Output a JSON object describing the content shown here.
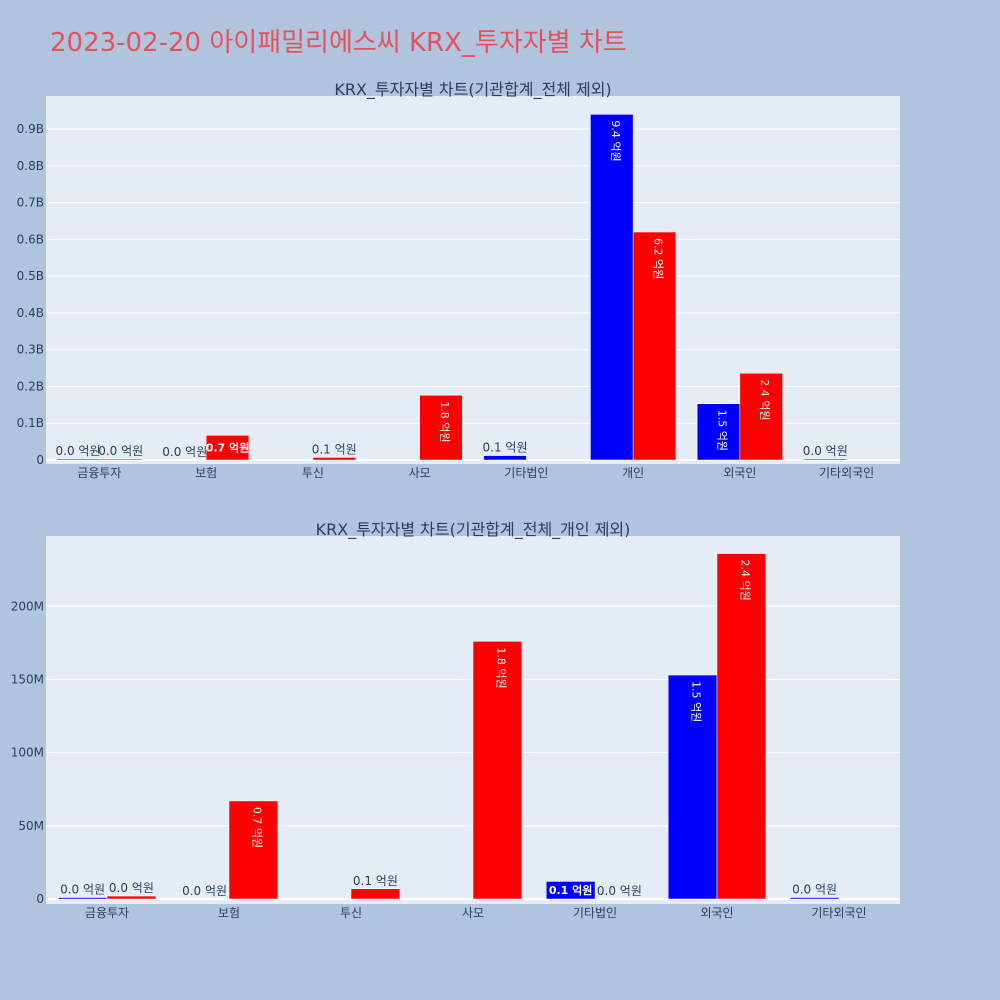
{
  "page": {
    "title": "2023-02-20 아이패밀리에스씨 KRX_투자자별 차트"
  },
  "colors": {
    "background": "#b0c4de",
    "plot_bg": "#e5ecf6",
    "grid": "#ffffff",
    "title": "#e8505b",
    "text": "#2a3f5f",
    "buy": "#0000ff",
    "sell": "#ff0000"
  },
  "chart_data": [
    {
      "type": "bar",
      "title": "KRX_투자자별 차트(기관합계_전체 제외)",
      "categories": [
        "금융투자",
        "보험",
        "투신",
        "사모",
        "기타법인",
        "개인",
        "외국인",
        "기타외국인"
      ],
      "series": [
        {
          "color": "#0000ff",
          "values": [
            1000000,
            0,
            0,
            0,
            12000000,
            940000000,
            153000000,
            1000000
          ],
          "labels": [
            "0.0 억원",
            "0.0 억원",
            "",
            "",
            "0.1 억원",
            "9.4 억원",
            "1.5 억원",
            "0.0 억원"
          ]
        },
        {
          "color": "#ff0000",
          "values": [
            2000000,
            67000000,
            7000000,
            176000000,
            0,
            620000000,
            236000000,
            0
          ],
          "labels": [
            "0.0 억원",
            "0.7 억원",
            "0.1 억원",
            "1.8 억원",
            "",
            "6.2 억원",
            "2.4 억원",
            ""
          ]
        }
      ],
      "ylim": [
        0,
        990000000
      ],
      "yticks": [
        0,
        100000000,
        200000000,
        300000000,
        400000000,
        500000000,
        600000000,
        700000000,
        800000000,
        900000000
      ],
      "ytick_labels": [
        "0",
        "0.1B",
        "0.2B",
        "0.3B",
        "0.4B",
        "0.5B",
        "0.6B",
        "0.7B",
        "0.8B",
        "0.9B"
      ],
      "grid": true
    },
    {
      "type": "bar",
      "title": "KRX_투자자별 차트(기관합계_전체_개인 제외)",
      "categories": [
        "금융투자",
        "보험",
        "투신",
        "사모",
        "기타법인",
        "외국인",
        "기타외국인"
      ],
      "series": [
        {
          "color": "#0000ff",
          "values": [
            1000000,
            0,
            0,
            0,
            12000000,
            153000000,
            1000000
          ],
          "labels": [
            "0.0 억원",
            "0.0 억원",
            "",
            "",
            "0.1 억원",
            "1.5 억원",
            "0.0 억원"
          ]
        },
        {
          "color": "#ff0000",
          "values": [
            2000000,
            67000000,
            7000000,
            176000000,
            0,
            236000000,
            0
          ],
          "labels": [
            "0.0 억원",
            "0.7 억원",
            "0.1 억원",
            "1.8 억원",
            "0.0 억원",
            "2.4 억원",
            ""
          ]
        }
      ],
      "ylim": [
        0,
        248000000
      ],
      "yticks": [
        0,
        50000000,
        100000000,
        150000000,
        200000000
      ],
      "ytick_labels": [
        "0",
        "50M",
        "100M",
        "150M",
        "200M"
      ],
      "grid": true
    }
  ]
}
